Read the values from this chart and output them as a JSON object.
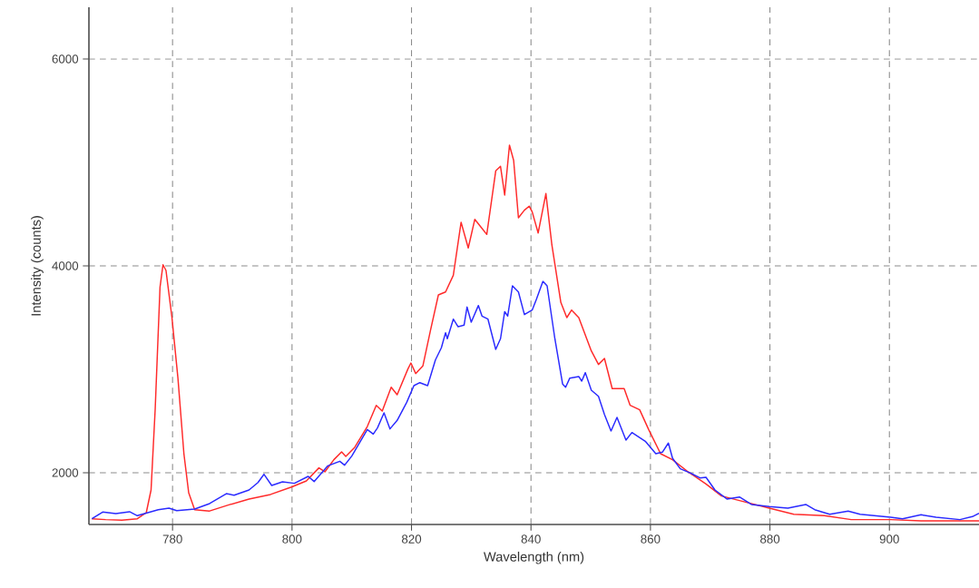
{
  "chart_data": {
    "type": "line",
    "xlabel": "Wavelength (nm)",
    "ylabel": "Intensity (counts)",
    "xlim": [
      766,
      915
    ],
    "ylim": [
      1500,
      6500
    ],
    "xticks": [
      780,
      800,
      820,
      840,
      860,
      880,
      900
    ],
    "yticks": [
      2000,
      4000,
      6000
    ],
    "grid": true,
    "marker": "none",
    "line_style": "solid",
    "series": [
      {
        "color": "#ff2a2a",
        "x": [
          766.5,
          768.8,
          771.5,
          774.1,
          775.6,
          776.4,
          777.1,
          777.9,
          778.4,
          778.9,
          779.9,
          780.9,
          781.9,
          782.7,
          783.7,
          786.2,
          789.3,
          792.8,
          796.4,
          799.9,
          802.4,
          804.5,
          805.5,
          807,
          808.3,
          809,
          810.5,
          812.6,
          814.1,
          815.1,
          816.6,
          817.6,
          819.4,
          819.9,
          820.7,
          821.9,
          823.2,
          824.5,
          825.7,
          827,
          828.3,
          829.5,
          830.6,
          832.6,
          834.1,
          834.9,
          835.6,
          836.4,
          837.1,
          837.9,
          838.9,
          839.7,
          840.2,
          841.2,
          842.5,
          843.5,
          845,
          846,
          846.8,
          848,
          850.1,
          851.3,
          852.3,
          853.6,
          855.6,
          856.6,
          858.2,
          859.7,
          861.7,
          863.7,
          866.3,
          869.3,
          871.9,
          874.9,
          879.9,
          884,
          889.1,
          893.6,
          900.2,
          905.3,
          915
        ],
        "values": [
          1555,
          1547,
          1541,
          1555,
          1614,
          1833,
          2623,
          3792,
          4011,
          3956,
          3500,
          2915,
          2184,
          1807,
          1643,
          1630,
          1687,
          1746,
          1790,
          1862,
          1921,
          2047,
          2009,
          2126,
          2202,
          2158,
          2246,
          2447,
          2652,
          2596,
          2827,
          2754,
          3003,
          3061,
          2959,
          3032,
          3383,
          3719,
          3748,
          3909,
          4421,
          4173,
          4450,
          4304,
          4918,
          4962,
          4684,
          5167,
          5020,
          4465,
          4538,
          4577,
          4523,
          4318,
          4699,
          4202,
          3646,
          3500,
          3573,
          3500,
          3178,
          3047,
          3105,
          2813,
          2813,
          2652,
          2608,
          2418,
          2184,
          2126,
          2009,
          1892,
          1775,
          1731,
          1658,
          1599,
          1585,
          1547,
          1547,
          1535,
          1535
        ]
      },
      {
        "color": "#2a2aff",
        "x": [
          766.5,
          768.3,
          770.5,
          772.8,
          774.1,
          777.6,
          779.4,
          780.7,
          783.7,
          786.2,
          789,
          790.3,
          792.8,
          794.3,
          795.3,
          796.6,
          798.4,
          800.4,
          802.7,
          803.7,
          806,
          808,
          808.8,
          810,
          812.6,
          813.6,
          814.3,
          815.4,
          816.4,
          817.6,
          819.2,
          820.4,
          821.4,
          822.7,
          824,
          825,
          825.7,
          826,
          827,
          827.8,
          828.8,
          829.3,
          830,
          831.2,
          831.8,
          832.8,
          834.1,
          834.9,
          835.6,
          836.1,
          836.9,
          837.9,
          838.9,
          840.2,
          840.9,
          842,
          842.7,
          844,
          845.3,
          845.8,
          846.5,
          848,
          848.5,
          849.1,
          850.1,
          851.3,
          852.3,
          853.4,
          854.4,
          855.9,
          856.9,
          859.2,
          860.9,
          862,
          863,
          863.7,
          865,
          866.8,
          868.3,
          869.3,
          870.8,
          872.8,
          874.9,
          876.9,
          879.9,
          883,
          886,
          887.5,
          890,
          893.1,
          895.1,
          900.2,
          902.2,
          905.3,
          907.8,
          911.8,
          913.9,
          915
        ],
        "values": [
          1555,
          1620,
          1605,
          1623,
          1585,
          1643,
          1658,
          1634,
          1649,
          1702,
          1798,
          1783,
          1833,
          1906,
          1985,
          1877,
          1912,
          1898,
          1965,
          1915,
          2067,
          2111,
          2073,
          2161,
          2418,
          2374,
          2433,
          2579,
          2424,
          2506,
          2681,
          2842,
          2871,
          2842,
          3090,
          3208,
          3354,
          3296,
          3485,
          3412,
          3427,
          3602,
          3456,
          3617,
          3515,
          3485,
          3193,
          3296,
          3558,
          3515,
          3807,
          3748,
          3529,
          3573,
          3675,
          3851,
          3807,
          3296,
          2857,
          2827,
          2915,
          2930,
          2886,
          2968,
          2798,
          2739,
          2564,
          2404,
          2535,
          2316,
          2389,
          2301,
          2184,
          2199,
          2287,
          2140,
          2038,
          1994,
          1950,
          1956,
          1833,
          1746,
          1766,
          1693,
          1673,
          1658,
          1693,
          1643,
          1599,
          1629,
          1599,
          1570,
          1555,
          1594,
          1570,
          1547,
          1576,
          1608
        ]
      }
    ]
  }
}
